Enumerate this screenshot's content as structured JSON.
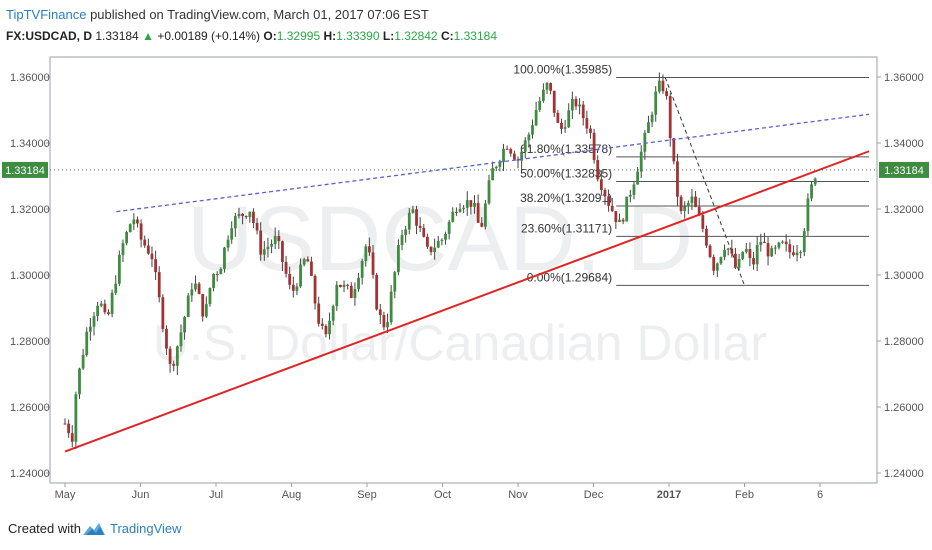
{
  "header": {
    "author": "TipTVFinance",
    "published": "published on TradingView.com, March 01, 2017 07:06 EST",
    "symbol": "FX:USDCAD, D",
    "last": "1.33184",
    "change": "+0.00189 (+0.14%)",
    "o_label": "O:",
    "o": "1.32995",
    "h_label": "H:",
    "h": "1.33390",
    "l_label": "L:",
    "l": "1.32842",
    "c_label": "C:",
    "c": "1.33184"
  },
  "watermark": {
    "symbol": "USDCAD, D",
    "name": "U.S. Dollar/Canadian Dollar"
  },
  "footer": {
    "created_with": "Created with",
    "brand": "TradingView"
  },
  "colors": {
    "up": "#27a844",
    "up_candle": "#3d8c40",
    "down_candle": "#a33333",
    "trendline": "#e02424",
    "channel": "#5b5fd6",
    "fib_lines": "#555555",
    "last_price_badge": "#3d8c40"
  },
  "chart_data": {
    "type": "candlestick",
    "title": "",
    "x_ticks": [
      "May",
      "Jun",
      "Jul",
      "Aug",
      "Sep",
      "Oct",
      "Nov",
      "Dec",
      "2017",
      "Feb",
      "6"
    ],
    "x_tick_pos": [
      0.0,
      1.0,
      2.0,
      3.0,
      4.0,
      5.0,
      6.0,
      7.0,
      8.0,
      9.0,
      10.0
    ],
    "y_ticks": [
      "1.36000",
      "1.34000",
      "1.32000",
      "1.30000",
      "1.28000",
      "1.26000",
      "1.24000"
    ],
    "ylim": [
      1.2395,
      1.3655
    ],
    "last_price": "1.33184",
    "grid": false,
    "price_path": [
      [
        0.0,
        1.255
      ],
      [
        0.1,
        1.251
      ],
      [
        0.15,
        1.266
      ],
      [
        0.3,
        1.284
      ],
      [
        0.45,
        1.293
      ],
      [
        0.55,
        1.285
      ],
      [
        0.75,
        1.308
      ],
      [
        0.9,
        1.318
      ],
      [
        1.0,
        1.311
      ],
      [
        1.15,
        1.306
      ],
      [
        1.3,
        1.285
      ],
      [
        1.4,
        1.271
      ],
      [
        1.55,
        1.284
      ],
      [
        1.7,
        1.299
      ],
      [
        1.85,
        1.287
      ],
      [
        1.95,
        1.3
      ],
      [
        2.05,
        1.302
      ],
      [
        2.2,
        1.316
      ],
      [
        2.45,
        1.32
      ],
      [
        2.6,
        1.307
      ],
      [
        2.8,
        1.311
      ],
      [
        3.0,
        1.294
      ],
      [
        3.2,
        1.306
      ],
      [
        3.35,
        1.287
      ],
      [
        3.45,
        1.28
      ],
      [
        3.6,
        1.298
      ],
      [
        3.8,
        1.294
      ],
      [
        4.0,
        1.31
      ],
      [
        4.15,
        1.288
      ],
      [
        4.25,
        1.284
      ],
      [
        4.45,
        1.312
      ],
      [
        4.6,
        1.32
      ],
      [
        4.8,
        1.307
      ],
      [
        5.0,
        1.311
      ],
      [
        5.2,
        1.322
      ],
      [
        5.4,
        1.322
      ],
      [
        5.5,
        1.313
      ],
      [
        5.65,
        1.331
      ],
      [
        5.85,
        1.34
      ],
      [
        6.0,
        1.335
      ],
      [
        6.15,
        1.343
      ],
      [
        6.25,
        1.351
      ],
      [
        6.4,
        1.358
      ],
      [
        6.55,
        1.343
      ],
      [
        6.75,
        1.353
      ],
      [
        6.95,
        1.344
      ],
      [
        7.05,
        1.331
      ],
      [
        7.2,
        1.322
      ],
      [
        7.35,
        1.315
      ],
      [
        7.55,
        1.33
      ],
      [
        7.7,
        1.343
      ],
      [
        7.85,
        1.357
      ],
      [
        7.95,
        1.357
      ],
      [
        8.05,
        1.335
      ],
      [
        8.15,
        1.318
      ],
      [
        8.3,
        1.323
      ],
      [
        8.45,
        1.314
      ],
      [
        8.6,
        1.302
      ],
      [
        8.75,
        1.31
      ],
      [
        8.9,
        1.301
      ],
      [
        9.0,
        1.309
      ],
      [
        9.1,
        1.302
      ],
      [
        9.2,
        1.311
      ],
      [
        9.35,
        1.306
      ],
      [
        9.5,
        1.309
      ],
      [
        9.6,
        1.307
      ],
      [
        9.75,
        1.309
      ],
      [
        9.85,
        1.323
      ],
      [
        9.95,
        1.332
      ]
    ],
    "trendline": {
      "label": "",
      "from": [
        0.0,
        1.2465
      ],
      "to": [
        10.65,
        1.3375
      ]
    },
    "channel_line": {
      "label": "",
      "from": [
        0.68,
        1.3192
      ],
      "to": [
        10.65,
        1.3487
      ]
    },
    "fib_swing": {
      "from": [
        7.95,
        1.35985
      ],
      "to": [
        9.0,
        1.29684
      ]
    },
    "fib_levels": [
      {
        "label": "100.00%(1.35985)",
        "value": 1.35985
      },
      {
        "label": "61.80%(1.33578)",
        "value": 1.33578
      },
      {
        "label": "50.00%(1.32835)",
        "value": 1.32835
      },
      {
        "label": "38.20%(1.32091)",
        "value": 1.32091
      },
      {
        "label": "23.60%(1.31171)",
        "value": 1.31171
      },
      {
        "label": "0.00%(1.29684)",
        "value": 1.29684
      }
    ],
    "fib_range_x": [
      7.3,
      10.65
    ]
  }
}
